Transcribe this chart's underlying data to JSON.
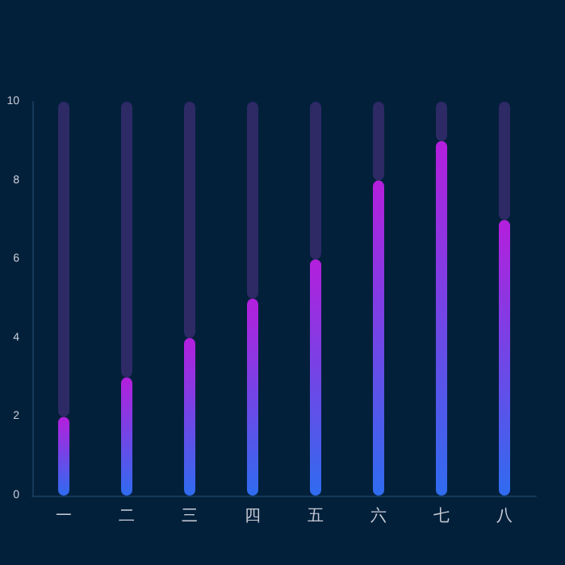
{
  "chart_data": {
    "type": "bar",
    "categories": [
      "一",
      "二",
      "三",
      "四",
      "五",
      "六",
      "七",
      "八"
    ],
    "series": [
      {
        "color": "#b41fdc",
        "values": [
          2,
          3,
          4,
          5,
          6,
          8,
          9,
          7
        ]
      },
      {
        "color": "#2d2a66",
        "values": [
          8,
          7,
          6,
          5,
          4,
          2,
          1,
          3
        ]
      }
    ],
    "stacked": true,
    "ylim": [
      0,
      10
    ],
    "yticks": [
      0,
      2,
      4,
      6,
      8,
      10
    ],
    "grid": false
  }
}
